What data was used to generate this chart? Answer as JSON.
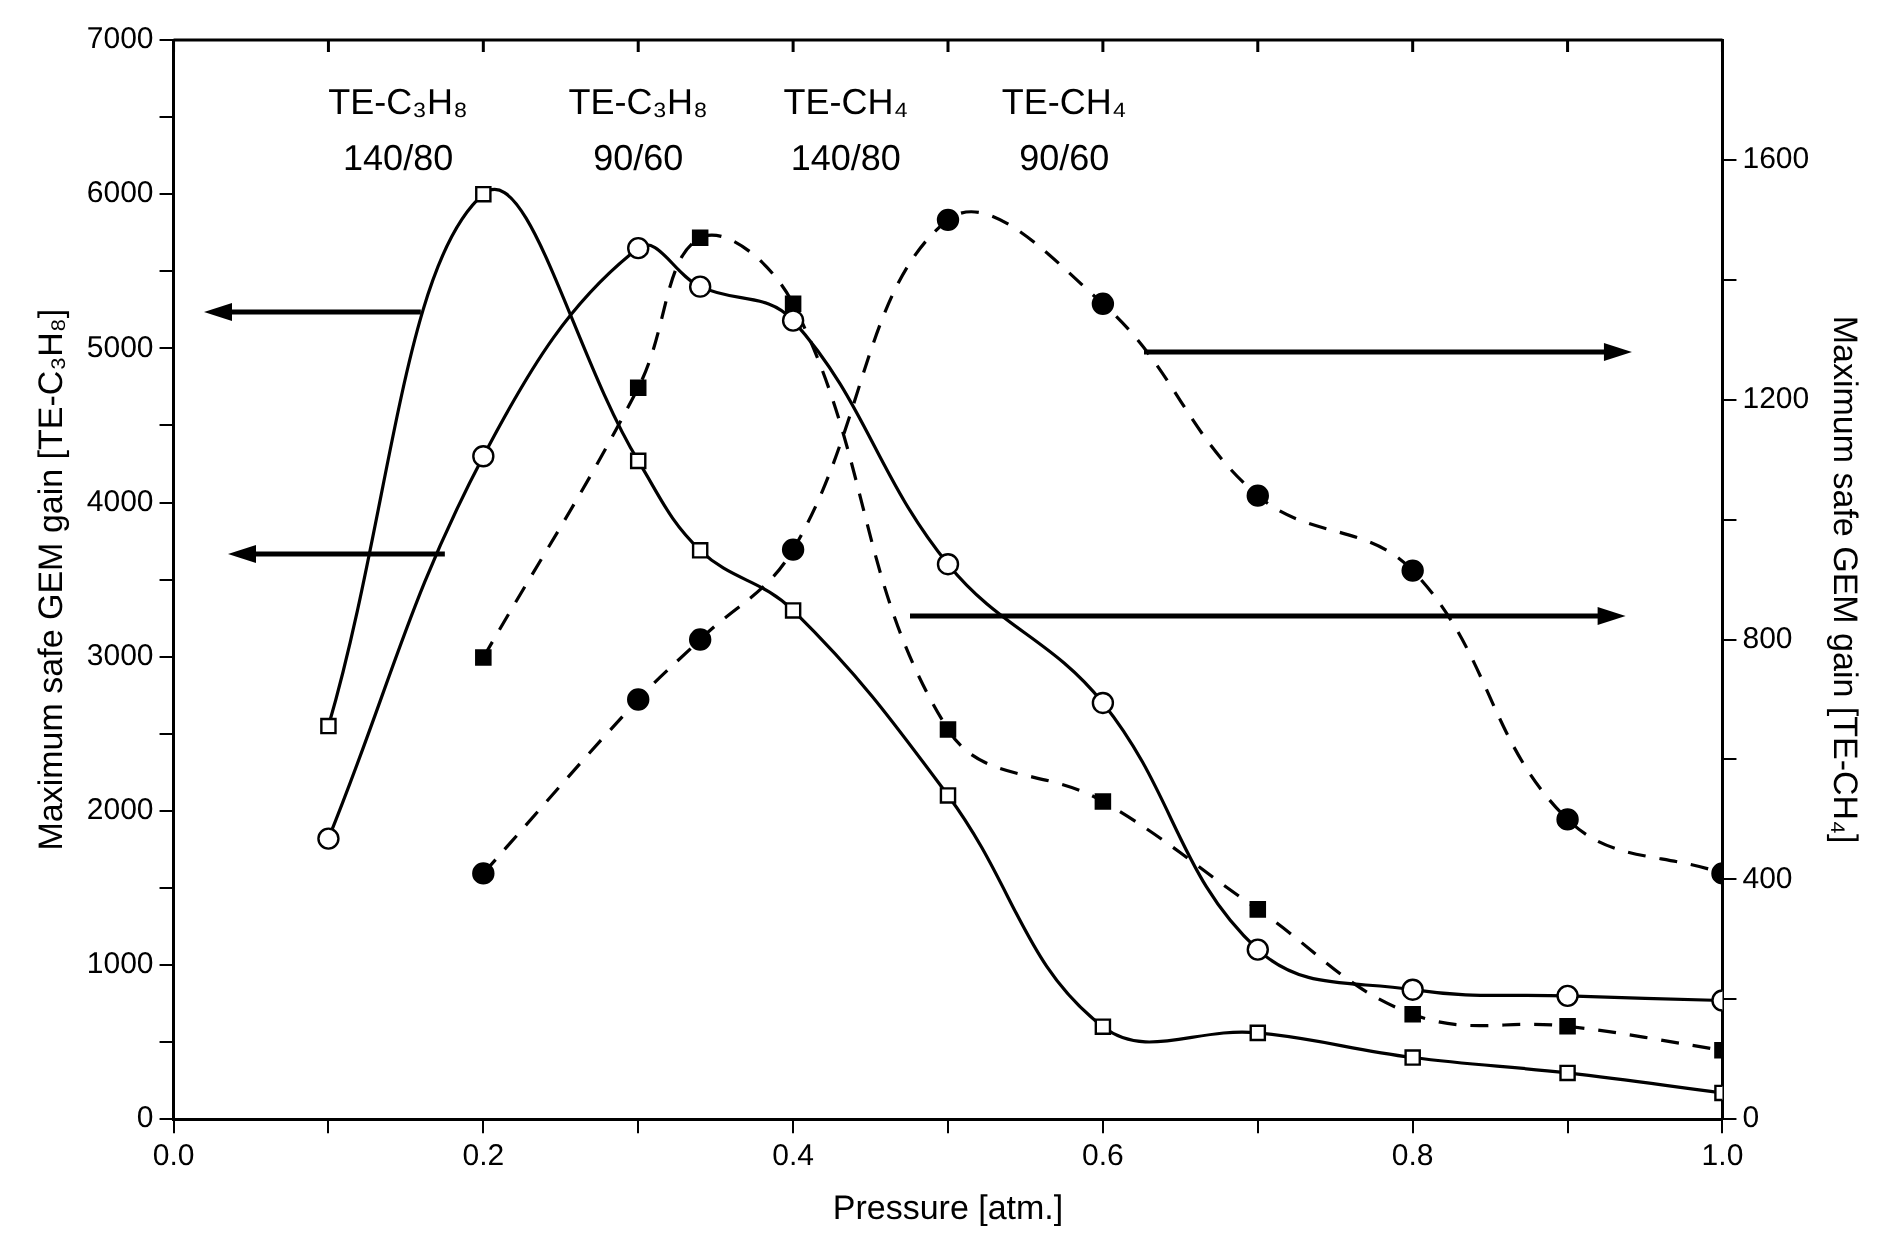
{
  "chart_data": {
    "type": "line",
    "xlabel": "Pressure [atm.]",
    "ylabel": "Maximum safe GEM gain [TE-C₃H₈]",
    "y2label": "Maximum safe GEM gain [TE-CH₄]",
    "xlim": [
      0,
      1
    ],
    "xticks": [
      {
        "value": 0,
        "label": "0.0"
      },
      {
        "value": 0.1,
        "label": null
      },
      0.2,
      {
        "value": 0.3,
        "label": null
      },
      0.4,
      {
        "value": 0.5,
        "label": null
      },
      0.6,
      {
        "value": 0.7,
        "label": null
      },
      0.8,
      {
        "value": 0.9,
        "label": null
      },
      {
        "value": 1,
        "label": "1.0"
      }
    ],
    "ylim": [
      0,
      7000
    ],
    "yticks": [
      0,
      {
        "value": 500,
        "label": null
      },
      1000,
      {
        "value": 1500,
        "label": null
      },
      2000,
      {
        "value": 2500,
        "label": null
      },
      3000,
      {
        "value": 3500,
        "label": null
      },
      4000,
      {
        "value": 4500,
        "label": null
      },
      5000,
      {
        "value": 5500,
        "label": null
      },
      6000,
      {
        "value": 6500,
        "label": null
      },
      7000
    ],
    "y2lim": [
      0,
      1800
    ],
    "y2ticks": [
      0,
      {
        "value": 200,
        "label": null
      },
      400,
      {
        "value": 600,
        "label": null
      },
      800,
      {
        "value": 1000,
        "label": null
      },
      1200,
      {
        "value": 1400,
        "label": null
      },
      1600
    ],
    "grid": false,
    "annotations": [
      "TE-C₃H₈ 140/80",
      "TE-C₃H₈ 90/60",
      "TE-CH₄ 140/80",
      "TE-CH₄ 90/60"
    ],
    "series": [
      {
        "color": "#000000",
        "marker": "square",
        "line_style": "solid",
        "x": [
          0.1,
          0.2,
          0.3,
          0.34,
          0.4,
          0.5,
          0.6,
          0.7,
          0.8,
          0.9,
          1.0
        ],
        "values": [
          2550,
          6000,
          4270,
          3690,
          3300,
          2100,
          600,
          560,
          400,
          300,
          170
        ]
      },
      {
        "color": "#000000",
        "marker": "circle",
        "line_style": "solid",
        "x": [
          0.1,
          0.2,
          0.3,
          0.34,
          0.4,
          0.5,
          0.6,
          0.7,
          0.8,
          0.9,
          1.0
        ],
        "values": [
          1820,
          4300,
          5650,
          5400,
          5180,
          3600,
          2700,
          1100,
          840,
          800,
          770
        ]
      },
      {
        "color": "#000000",
        "marker": "square",
        "line_style": "dashed",
        "axis": "y2",
        "x": [
          0.2,
          0.3,
          0.34,
          0.4,
          0.5,
          0.6,
          0.7,
          0.8,
          0.9,
          1.0
        ],
        "values": [
          770,
          1220,
          1470,
          1360,
          650,
          530,
          350,
          175,
          155,
          115
        ]
      },
      {
        "color": "#000000",
        "marker": "circle",
        "line_style": "dashed",
        "axis": "y2",
        "x": [
          0.2,
          0.3,
          0.34,
          0.4,
          0.5,
          0.6,
          0.7,
          0.8,
          0.9,
          1.0
        ],
        "values": [
          410,
          700,
          800,
          950,
          1500,
          1360,
          1040,
          915,
          500,
          410
        ]
      }
    ]
  }
}
